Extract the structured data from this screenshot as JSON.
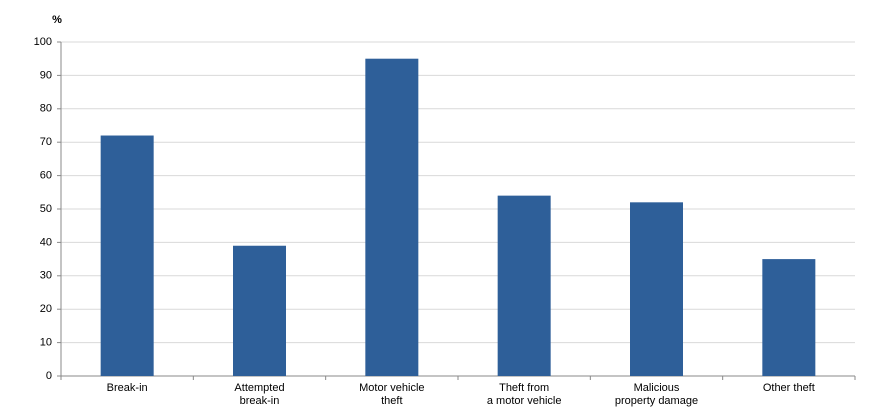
{
  "chart_data": {
    "type": "bar",
    "y_label": "%",
    "categories": [
      [
        "Break-in"
      ],
      [
        "Attempted",
        "break-in"
      ],
      [
        "Motor vehicle",
        "theft"
      ],
      [
        "Theft from",
        "a motor vehicle"
      ],
      [
        "Malicious",
        "property damage"
      ],
      [
        "Other theft"
      ]
    ],
    "values": [
      72,
      39,
      95,
      54,
      52,
      35
    ],
    "color": "#2e5f99",
    "ylim": [
      0,
      100
    ],
    "yticks": [
      0,
      10,
      20,
      30,
      40,
      50,
      60,
      70,
      80,
      90,
      100
    ],
    "grid": true
  }
}
